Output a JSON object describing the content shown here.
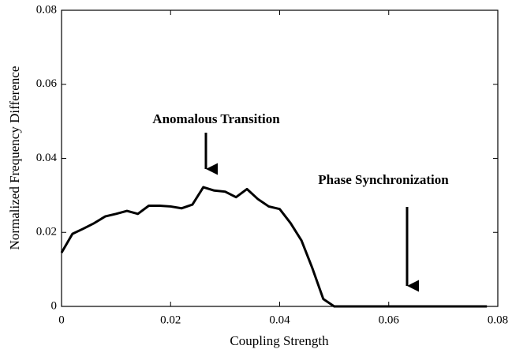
{
  "chart_data": {
    "type": "line",
    "xlabel": "Coupling Strength",
    "ylabel": "Normalized Frequency Difference",
    "annotations": [
      "Anomalous Transition",
      "Phase Synchronization"
    ],
    "x": [
      0,
      0.002,
      0.004,
      0.006,
      0.008,
      0.01,
      0.012,
      0.014,
      0.016,
      0.018,
      0.02,
      0.022,
      0.024,
      0.026,
      0.028,
      0.03,
      0.032,
      0.034,
      0.036,
      0.038,
      0.04,
      0.042,
      0.044,
      0.046,
      0.048,
      0.05,
      0.052,
      0.054,
      0.056,
      0.058,
      0.06,
      0.062,
      0.064,
      0.066,
      0.068,
      0.07,
      0.072,
      0.074,
      0.076,
      0.078
    ],
    "series": [
      {
        "color": "#000000",
        "values": [
          0.0145,
          0.0196,
          0.021,
          0.0225,
          0.0243,
          0.025,
          0.0258,
          0.025,
          0.0272,
          0.0272,
          0.027,
          0.0265,
          0.0275,
          0.0322,
          0.0313,
          0.031,
          0.0295,
          0.0317,
          0.029,
          0.027,
          0.0263,
          0.0225,
          0.0178,
          0.0103,
          0.002,
          0,
          0,
          0,
          0,
          0,
          0,
          0,
          0,
          0,
          0,
          0,
          0,
          0,
          0,
          0
        ]
      }
    ],
    "xlim": [
      0,
      0.08
    ],
    "xticks": [
      0,
      0.02,
      0.04,
      0.06,
      0.08
    ],
    "ylim": [
      0,
      0.08
    ],
    "yticks": [
      0,
      0.02,
      0.04,
      0.06,
      0.08
    ]
  }
}
